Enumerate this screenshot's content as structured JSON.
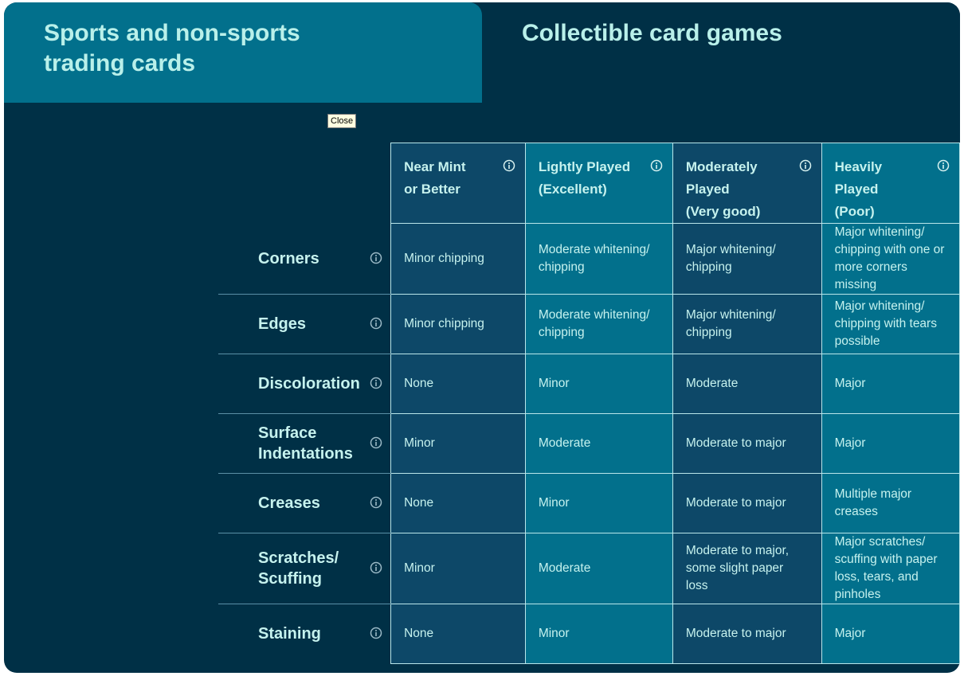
{
  "tabs": [
    {
      "label": "Sports and non-sports trading cards",
      "active": true
    },
    {
      "label": "Collectible card games",
      "active": false
    }
  ],
  "tooltip": "Close",
  "columns": [
    {
      "line1": "Near Mint",
      "line2": "or Better"
    },
    {
      "line1": "Lightly Played",
      "line2": "(Excellent)"
    },
    {
      "line1": "Moderately Played",
      "line2": "(Very good)"
    },
    {
      "line1": "Heavily Played",
      "line2": "(Poor)"
    }
  ],
  "rows": [
    {
      "label": "Corners",
      "cells": [
        "Minor chipping",
        "Moderate whitening/ chipping",
        "Major whitening/ chipping",
        "Major whitening/ chipping with one or more corners missing"
      ]
    },
    {
      "label": "Edges",
      "cells": [
        "Minor chipping",
        "Moderate whitening/ chipping",
        "Major whitening/ chipping",
        "Major whitening/ chipping with tears possible"
      ]
    },
    {
      "label": "Discoloration",
      "cells": [
        "None",
        "Minor",
        "Moderate",
        "Major"
      ]
    },
    {
      "label": "Surface Indentations",
      "cells": [
        "Minor",
        "Moderate",
        "Moderate to major",
        "Major"
      ]
    },
    {
      "label": "Creases",
      "cells": [
        "None",
        "Minor",
        "Moderate to major",
        "Multiple major creases"
      ]
    },
    {
      "label": "Scratches/ Scuffing",
      "cells": [
        "Minor",
        "Moderate",
        "Moderate to major, some slight paper loss",
        "Major scratches/ scuffing with paper loss, tears, and pinholes"
      ]
    },
    {
      "label": "Staining",
      "cells": [
        "None",
        "Minor",
        "Moderate to major",
        "Major"
      ]
    }
  ],
  "icons": {
    "info": "info-circle-icon"
  },
  "colors": {
    "background": "#003046",
    "active_tab": "#02708c",
    "dark_cell": "#0d4868",
    "light_cell": "#02708c",
    "text": "#c6f2ee"
  }
}
